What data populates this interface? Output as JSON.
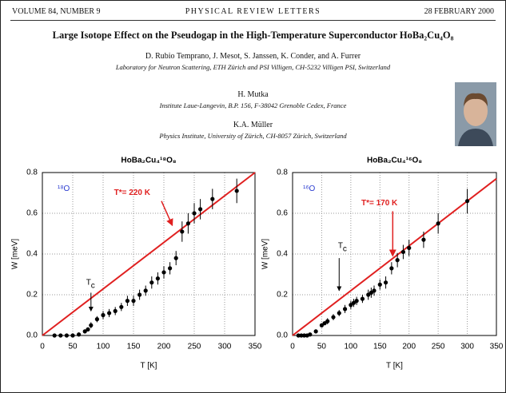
{
  "header": {
    "volume": "VOLUME 84, NUMBER 9",
    "journal": "PHYSICAL REVIEW LETTERS",
    "date": "28 FEBRUARY 2000"
  },
  "title": "Large Isotope Effect on the Pseudogap in the High-Temperature Superconductor HoBa₂Cu₄O₈",
  "authors": [
    {
      "names": "D. Rubio Temprano, J. Mesot, S. Janssen, K. Conder, and A. Furrer",
      "affiliation": "Laboratory for Neutron Scattering, ETH Zürich and PSI Villigen, CH-5232 Villigen PSI, Switzerland"
    },
    {
      "names": "H. Mutka",
      "affiliation": "Institute Laue-Langevin, B.P. 156, F-38042 Grenoble Cedex, France"
    },
    {
      "names": "K.A. Müller",
      "affiliation": "Physics Institute, University of Zürich, CH-8057 Zürich, Switzerland"
    }
  ],
  "chart_data": [
    {
      "type": "scatter",
      "title": "HoBa₂Cu₄¹⁸O₈",
      "isotope_label": "¹⁸O",
      "tstar_label": "T*= 220 K",
      "tc_label": "T",
      "tc_sub": "c",
      "x_label": "T [K]",
      "y_label": "W [meV]",
      "grid": true,
      "xlim": [
        0,
        350
      ],
      "xticks": [
        0,
        50,
        100,
        150,
        200,
        250,
        300,
        350
      ],
      "ylim": [
        0,
        0.8
      ],
      "yticks": [
        {
          "value": 0,
          "label": "0.0"
        },
        0.2,
        0.4,
        0.6,
        0.8
      ],
      "x": [
        20,
        30,
        40,
        50,
        60,
        70,
        75,
        80,
        90,
        100,
        110,
        120,
        130,
        140,
        150,
        160,
        170,
        180,
        190,
        200,
        210,
        220,
        230,
        240,
        250,
        260,
        280,
        320
      ],
      "series": [
        {
          "color": "#000000",
          "values": [
            0,
            0,
            0,
            0,
            0.005,
            0.02,
            0.03,
            0.05,
            0.08,
            0.1,
            0.11,
            0.12,
            0.14,
            0.17,
            0.17,
            0.2,
            0.22,
            0.26,
            0.28,
            0.31,
            0.33,
            0.38,
            0.51,
            0.55,
            0.6,
            0.62,
            0.67,
            0.71
          ],
          "errors": [
            0.005,
            0.005,
            0.005,
            0.005,
            0.01,
            0.01,
            0.01,
            0.015,
            0.015,
            0.02,
            0.02,
            0.02,
            0.02,
            0.025,
            0.025,
            0.025,
            0.025,
            0.03,
            0.03,
            0.03,
            0.03,
            0.035,
            0.05,
            0.05,
            0.05,
            0.05,
            0.05,
            0.06
          ]
        }
      ],
      "fit_line": {
        "color": "#e02020",
        "x": [
          0,
          350
        ],
        "values": [
          0,
          0.8
        ]
      }
    },
    {
      "type": "scatter",
      "title": "HoBa₂Cu₄¹⁶O₈",
      "isotope_label": "¹⁶O",
      "tstar_label": "T*= 170 K",
      "tc_label": "T",
      "tc_sub": "c",
      "x_label": "T [K]",
      "y_label": "W [meV]",
      "grid": true,
      "xlim": [
        0,
        350
      ],
      "xticks": [
        0,
        50,
        100,
        150,
        200,
        250,
        300,
        350
      ],
      "ylim": [
        0,
        0.8
      ],
      "yticks": [
        {
          "value": 0,
          "label": "0.0"
        },
        0.2,
        0.4,
        0.6,
        0.8
      ],
      "x": [
        10,
        15,
        20,
        25,
        30,
        40,
        50,
        55,
        60,
        70,
        80,
        90,
        100,
        105,
        110,
        120,
        130,
        135,
        140,
        150,
        160,
        170,
        180,
        190,
        200,
        225,
        250,
        300
      ],
      "series": [
        {
          "color": "#000000",
          "values": [
            0,
            0,
            0,
            0,
            0.005,
            0.02,
            0.05,
            0.06,
            0.07,
            0.09,
            0.11,
            0.13,
            0.15,
            0.16,
            0.17,
            0.18,
            0.2,
            0.21,
            0.22,
            0.25,
            0.26,
            0.33,
            0.37,
            0.41,
            0.43,
            0.47,
            0.55,
            0.66
          ],
          "errors": [
            0.005,
            0.005,
            0.005,
            0.005,
            0.005,
            0.01,
            0.01,
            0.01,
            0.015,
            0.015,
            0.015,
            0.02,
            0.02,
            0.02,
            0.02,
            0.02,
            0.025,
            0.025,
            0.025,
            0.025,
            0.03,
            0.03,
            0.035,
            0.035,
            0.04,
            0.04,
            0.05,
            0.06
          ]
        }
      ],
      "fit_line": {
        "color": "#e02020",
        "x": [
          0,
          350
        ],
        "values": [
          0,
          0.77
        ]
      }
    }
  ]
}
